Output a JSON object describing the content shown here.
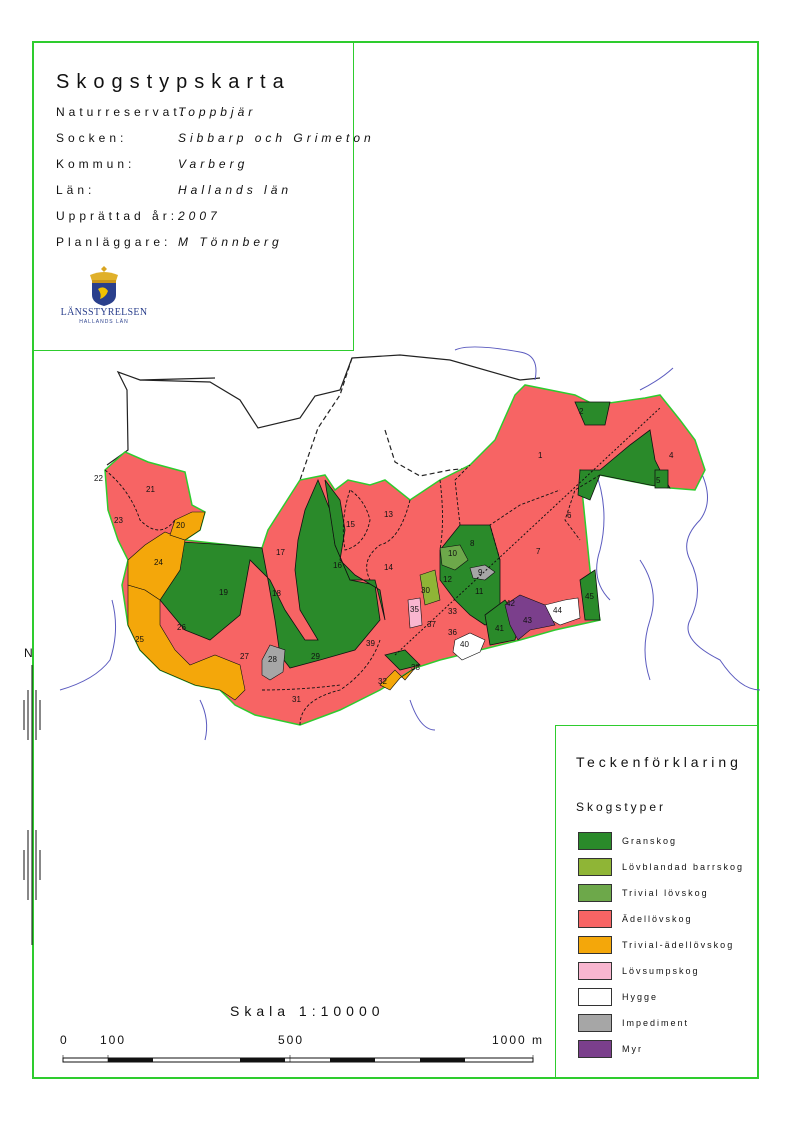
{
  "title": "Skogstypskarta",
  "info": [
    {
      "key": "Naturreservat:",
      "value": "Toppbjär"
    },
    {
      "key": "Socken:",
      "value": "Sibbarp och Grimeton"
    },
    {
      "key": "Kommun:",
      "value": "Varberg"
    },
    {
      "key": "Län:",
      "value": "Hallands län"
    },
    {
      "key": "Upprättad år:",
      "value": "2007"
    },
    {
      "key": "Planläggare:",
      "value": "M Tönnberg"
    }
  ],
  "logo": {
    "name": "LÄNSSTYRELSEN",
    "sub": "HALLANDS LÄN",
    "icon": "crown-lion-emblem-icon"
  },
  "legend": {
    "title": "Teckenförklaring",
    "subtitle": "Skogstyper",
    "items": [
      {
        "label": "Granskog",
        "color": "#2a8a2a"
      },
      {
        "label": "Lövblandad barrskog",
        "color": "#8fb536"
      },
      {
        "label": "Trivial lövskog",
        "color": "#6da84a"
      },
      {
        "label": "Ädellövskog",
        "color": "#f76464"
      },
      {
        "label": "Trivial-ädellövskog",
        "color": "#f4a70a"
      },
      {
        "label": "Lövsumpskog",
        "color": "#f9b6d0"
      },
      {
        "label": "Hygge",
        "color": "#ffffff"
      },
      {
        "label": "Impediment",
        "color": "#a6a6a6"
      },
      {
        "label": "Myr",
        "color": "#7b3f8c"
      }
    ]
  },
  "scale": {
    "label": "Skala 1:10000",
    "ticks": [
      "0",
      "100",
      "500",
      "1000 m"
    ]
  },
  "north_label": "N",
  "stand_labels": [
    "1",
    "2",
    "4",
    "5",
    "6",
    "7",
    "8",
    "9",
    "10",
    "11",
    "12",
    "13",
    "14",
    "15",
    "16",
    "17",
    "18",
    "19",
    "20",
    "21",
    "22",
    "23",
    "24",
    "25",
    "26",
    "27",
    "28",
    "29",
    "30",
    "31",
    "32",
    "33",
    "35",
    "36",
    "37",
    "38",
    "39",
    "40",
    "41",
    "42",
    "43",
    "44",
    "45"
  ]
}
